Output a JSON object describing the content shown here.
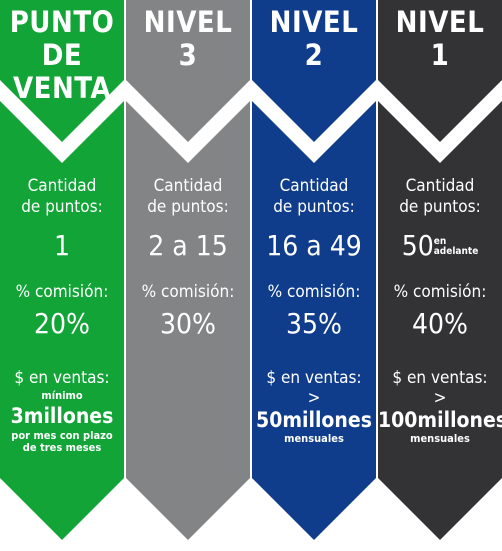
{
  "columns": [
    {
      "color": "#12a437",
      "title_line1": "PUNTO",
      "title_line2": "DE VENTA",
      "points_label_1": "Cantidad",
      "points_label_2": "de puntos:",
      "points_value": "1",
      "commission_label": "% comisión:",
      "commission_value": "20%",
      "sales_label": "$ en ventas:",
      "sales_prefix": "mínimo",
      "sales_amount": "3millones",
      "sales_note_1": "por mes con plazo",
      "sales_note_2": "de tres meses"
    },
    {
      "color": "#838486",
      "title_line1": "NIVEL",
      "title_line2": "3",
      "points_label_1": "Cantidad",
      "points_label_2": "de puntos:",
      "points_value": "2 a 15",
      "commission_label": "% comisión:",
      "commission_value": "30%"
    },
    {
      "color": "#0f3d8c",
      "title_line1": "NIVEL",
      "title_line2": "2",
      "points_label_1": "Cantidad",
      "points_label_2": "de puntos:",
      "points_value": "16 a 49",
      "commission_label": "% comisión:",
      "commission_value": "35%",
      "sales_label": "$ en ventas:",
      "sales_prefix": ">",
      "sales_amount": "50millones",
      "sales_note_1": "mensuales"
    },
    {
      "color": "#333235",
      "title_line1": "NIVEL",
      "title_line2": "1",
      "points_label_1": "Cantidad",
      "points_label_2": "de puntos:",
      "points_value": "50",
      "points_suffix_1": "en",
      "points_suffix_2": "adelante",
      "commission_label": "% comisión:",
      "commission_value": "40%",
      "sales_label": "$ en ventas:",
      "sales_prefix": ">",
      "sales_amount": "100millones",
      "sales_note_1": "mensuales"
    }
  ]
}
